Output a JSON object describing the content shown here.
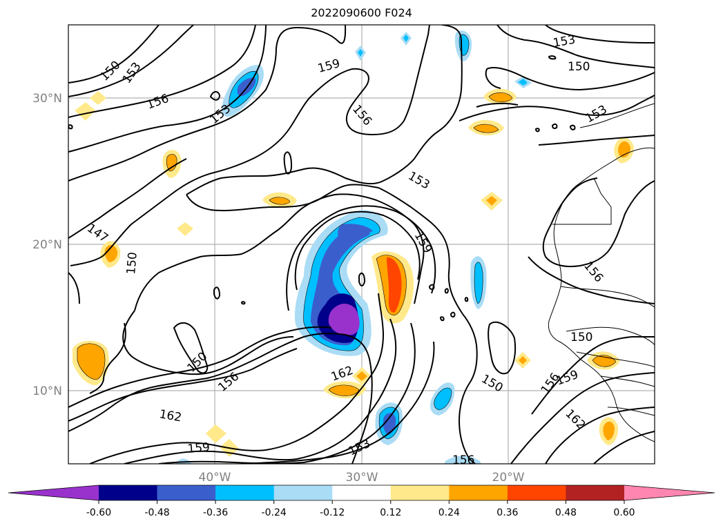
{
  "title": "2022090600 F024",
  "map": {
    "lat_labels": [
      "30°N",
      "20°N",
      "10°N"
    ],
    "lon_labels": [
      "40°W",
      "30°W",
      "20°W"
    ],
    "contour_labels": [
      "150",
      "153",
      "156",
      "153",
      "159",
      "156",
      "153",
      "153",
      "150",
      "153",
      "147",
      "150",
      "159",
      "156",
      "150",
      "156",
      "162",
      "150",
      "156",
      "159",
      "162",
      "159",
      "153",
      "156",
      "162"
    ]
  },
  "colorbar": {
    "ticks": [
      "-0.60",
      "-0.48",
      "-0.36",
      "-0.24",
      "-0.12",
      "0.12",
      "0.24",
      "0.36",
      "0.48",
      "0.60"
    ],
    "colors": [
      "#9932cc",
      "#00008b",
      "#3a5fcd",
      "#00bfff",
      "#aadcf5",
      "#ffffff",
      "#ffe98a",
      "#ffa500",
      "#ff4500",
      "#b22222",
      "#ff86b0"
    ]
  }
}
